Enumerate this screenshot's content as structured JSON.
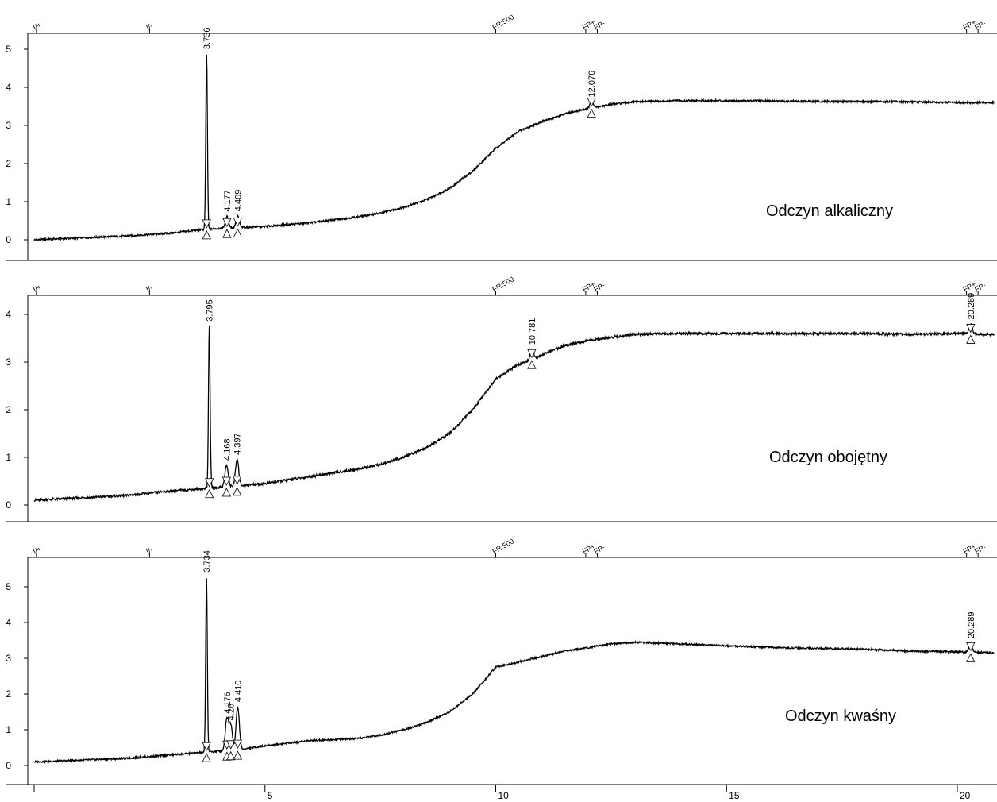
{
  "chart_data": [
    {
      "type": "line",
      "id": "panel-alkaline",
      "annotation": "Odczyn alkaliczny",
      "ylim": [
        -0.5,
        5.3
      ],
      "yticks": [
        0,
        1,
        2,
        3,
        4,
        5
      ],
      "xlim": [
        0,
        20.8
      ],
      "event_markers": [
        {
          "x": 0.05,
          "label": "I/+"
        },
        {
          "x": 2.5,
          "label": "I/-"
        },
        {
          "x": 10.0,
          "label": "FR:500"
        },
        {
          "x": 11.95,
          "label": "FP+"
        },
        {
          "x": 12.2,
          "label": "FP-"
        },
        {
          "x": 20.2,
          "label": "FP+"
        },
        {
          "x": 20.45,
          "label": "FP-"
        }
      ],
      "series": [
        {
          "x": [
            0,
            1,
            2,
            3,
            3.5,
            4,
            5,
            6,
            7,
            7.5,
            8,
            8.5,
            9,
            9.5,
            10,
            10.5,
            11,
            11.5,
            12,
            12.5,
            13,
            14,
            15,
            16,
            17,
            18,
            19,
            20,
            20.8
          ],
          "y": [
            0.0,
            0.05,
            0.1,
            0.18,
            0.25,
            0.3,
            0.35,
            0.45,
            0.6,
            0.7,
            0.85,
            1.05,
            1.35,
            1.8,
            2.4,
            2.85,
            3.1,
            3.3,
            3.45,
            3.55,
            3.62,
            3.65,
            3.65,
            3.64,
            3.63,
            3.63,
            3.62,
            3.6,
            3.6
          ]
        }
      ],
      "peaks": [
        {
          "x": 3.736,
          "height": 4.6,
          "label": "3.736"
        },
        {
          "x": 4.177,
          "height": 0.3,
          "label": "4.177"
        },
        {
          "x": 4.409,
          "height": 0.3,
          "label": "4.409"
        },
        {
          "x": 12.076,
          "height": 0.15,
          "label": "12.076"
        }
      ],
      "x_axis": false
    },
    {
      "type": "line",
      "id": "panel-neutral",
      "annotation": "Odczyn obojętny",
      "ylim": [
        -0.3,
        4.35
      ],
      "yticks": [
        0,
        1,
        2,
        3,
        4
      ],
      "xlim": [
        0,
        20.8
      ],
      "event_markers": [
        {
          "x": 0.05,
          "label": "I/+"
        },
        {
          "x": 2.5,
          "label": "I/-"
        },
        {
          "x": 10.0,
          "label": "FR:500"
        },
        {
          "x": 11.95,
          "label": "FP+"
        },
        {
          "x": 12.2,
          "label": "FP-"
        },
        {
          "x": 20.2,
          "label": "FP+"
        },
        {
          "x": 20.45,
          "label": "FP-"
        }
      ],
      "series": [
        {
          "x": [
            0,
            1,
            2,
            3,
            3.5,
            4,
            5,
            6,
            7,
            7.5,
            8,
            8.5,
            9,
            9.5,
            10,
            10.5,
            11,
            11.5,
            12,
            12.5,
            13,
            14,
            15,
            16,
            17,
            18,
            19,
            20,
            20.8
          ],
          "y": [
            0.1,
            0.15,
            0.2,
            0.3,
            0.33,
            0.37,
            0.45,
            0.6,
            0.75,
            0.85,
            1.0,
            1.2,
            1.5,
            2.0,
            2.65,
            2.95,
            3.15,
            3.35,
            3.45,
            3.52,
            3.58,
            3.6,
            3.6,
            3.6,
            3.6,
            3.6,
            3.58,
            3.6,
            3.58
          ]
        }
      ],
      "peaks": [
        {
          "x": 3.795,
          "height": 3.4,
          "label": "3.795"
        },
        {
          "x": 4.168,
          "height": 0.45,
          "label": "4.168"
        },
        {
          "x": 4.397,
          "height": 0.55,
          "label": "4.397"
        },
        {
          "x": 10.781,
          "height": 0.2,
          "label": "10.781"
        },
        {
          "x": 20.289,
          "height": 0.2,
          "label": "20.289"
        }
      ],
      "x_axis": false
    },
    {
      "type": "line",
      "id": "panel-acidic",
      "annotation": "Odczyn kwaśny",
      "ylim": [
        -0.5,
        5.9
      ],
      "yticks": [
        0,
        1,
        2,
        3,
        4,
        5
      ],
      "xlim": [
        0,
        20.8
      ],
      "xticks": [
        5,
        10,
        15,
        20
      ],
      "event_markers": [
        {
          "x": 0.05,
          "label": "I/+"
        },
        {
          "x": 2.5,
          "label": "I/-"
        },
        {
          "x": 10.0,
          "label": "FR:500"
        },
        {
          "x": 11.95,
          "label": "FP+"
        },
        {
          "x": 12.2,
          "label": "FP-"
        },
        {
          "x": 20.2,
          "label": "FP+"
        },
        {
          "x": 20.45,
          "label": "FP-"
        }
      ],
      "series": [
        {
          "x": [
            0,
            1,
            2,
            3,
            3.5,
            4,
            4.5,
            5,
            6,
            7,
            7.5,
            8,
            8.5,
            9,
            9.5,
            10,
            10.5,
            11,
            11.5,
            12,
            12.5,
            13,
            14,
            15,
            16,
            17,
            18,
            19,
            20,
            20.8
          ],
          "y": [
            0.1,
            0.15,
            0.2,
            0.3,
            0.35,
            0.4,
            0.45,
            0.55,
            0.7,
            0.75,
            0.85,
            1.0,
            1.2,
            1.5,
            2.0,
            2.75,
            2.9,
            3.05,
            3.2,
            3.3,
            3.4,
            3.45,
            3.4,
            3.35,
            3.3,
            3.28,
            3.25,
            3.2,
            3.18,
            3.15
          ]
        }
      ],
      "peaks": [
        {
          "x": 3.734,
          "height": 4.9,
          "label": "3.734"
        },
        {
          "x": 4.176,
          "height": 0.9,
          "label": "4.176"
        },
        {
          "x": 4.26,
          "height": 0.7,
          "label": "4.26"
        },
        {
          "x": 4.41,
          "height": 1.2,
          "label": "4.410"
        },
        {
          "x": 20.289,
          "height": 0.25,
          "label": "20.289"
        }
      ],
      "x_axis": true
    }
  ]
}
